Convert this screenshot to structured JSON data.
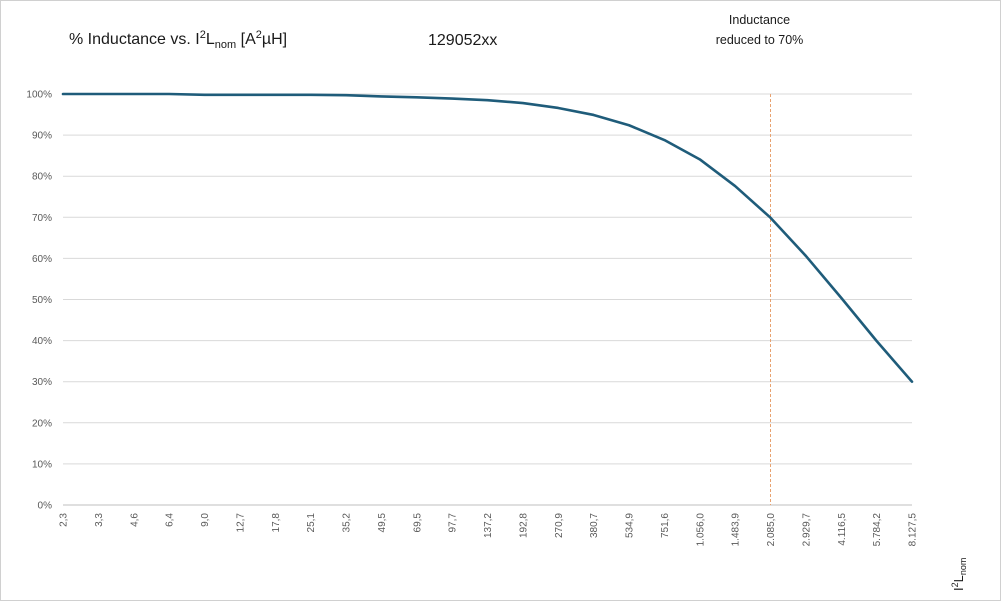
{
  "chart_data": {
    "type": "line",
    "title_parts": {
      "prefix": "% Inductance vs. I",
      "sup1": "2",
      "mid": "L",
      "sub": "nom",
      "bracket_open": " [A",
      "sup2": "2",
      "suffix": "µH]"
    },
    "part_number": "129052xx",
    "annotation": {
      "line1": "Inductance",
      "line2": "reduced to 70%",
      "category": "2.085,0"
    },
    "xlabel_parts": {
      "main": "I",
      "sup": "2",
      "mid": "L",
      "sub": "nom"
    },
    "y_tick_labels": [
      "0%",
      "10%",
      "20%",
      "30%",
      "40%",
      "50%",
      "60%",
      "70%",
      "80%",
      "90%",
      "100%"
    ],
    "ylim": [
      0,
      100
    ],
    "grid": true,
    "categories": [
      "2,3",
      "3,3",
      "4,6",
      "6,4",
      "9,0",
      "12,7",
      "17,8",
      "25,1",
      "35,2",
      "49,5",
      "69,5",
      "97,7",
      "137,2",
      "192,8",
      "270,9",
      "380,7",
      "534,9",
      "751,6",
      "1.056,0",
      "1.483,9",
      "2.085,0",
      "2.929,7",
      "4.116,5",
      "5.784,2",
      "8.127,5"
    ],
    "series": [
      {
        "values": [
          100,
          100,
          100,
          100,
          99.8,
          99.8,
          99.8,
          99.8,
          99.7,
          99.4,
          99.2,
          98.9,
          98.5,
          97.8,
          96.6,
          94.9,
          92.4,
          88.8,
          84.1,
          77.6,
          69.9,
          60.6,
          50.4,
          39.9,
          30
        ]
      }
    ],
    "colors": {
      "line": "#1f5c7a",
      "marker": "#e8a270",
      "grid": "#d9d9d9",
      "tick_text": "#595959"
    }
  }
}
